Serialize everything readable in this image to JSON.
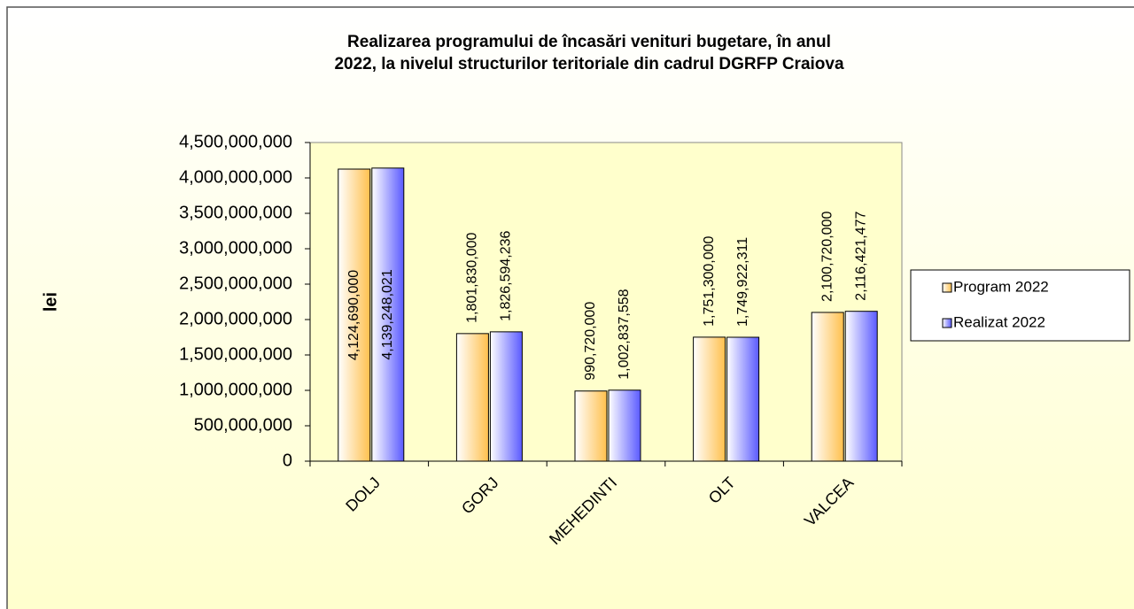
{
  "chart_data": {
    "type": "bar",
    "title": [
      "Realizarea programului de încasări venituri bugetare, în anul",
      "2022, la nivelul structurilor teritoriale din cadrul DGRFP Craiova"
    ],
    "y_label": "lei",
    "categories": [
      "DOLJ",
      "GORJ",
      "MEHEDINTI",
      "OLT",
      "VALCEA"
    ],
    "series": [
      {
        "name": "Program 2022",
        "color": "#ffc04d",
        "values": [
          4124690000,
          1801830000,
          990720000,
          1751300000,
          2100720000
        ],
        "value_labels": [
          "4,124,690,000",
          "1,801,830,000",
          "990,720,000",
          "1,751,300,000",
          "2,100,720,000"
        ]
      },
      {
        "name": "Realizat 2022",
        "color": "#5a5aff",
        "values": [
          4139248021,
          1826594236,
          1002837558,
          1749922311,
          2116421477
        ],
        "value_labels": [
          "4,139,248,021",
          "1,826,594,236",
          "1,002,837,558",
          "1,749,922,311",
          "2,116,421,477"
        ]
      }
    ],
    "ylim": [
      0,
      4500000000
    ],
    "yticks": [
      0,
      {
        "value": 500000000,
        "label": "500,000,000"
      },
      {
        "value": 1000000000,
        "label": "1,000,000,000"
      },
      {
        "value": 1500000000,
        "label": "1,500,000,000"
      },
      {
        "value": 2000000000,
        "label": "2,000,000,000"
      },
      {
        "value": 2500000000,
        "label": "2,500,000,000"
      },
      {
        "value": 3000000000,
        "label": "3,000,000,000"
      },
      {
        "value": 3500000000,
        "label": "3,500,000,000"
      },
      {
        "value": 4000000000,
        "label": "4,000,000,000"
      },
      {
        "value": 4500000000,
        "label": "4,500,000,000"
      }
    ],
    "legend": "right"
  }
}
